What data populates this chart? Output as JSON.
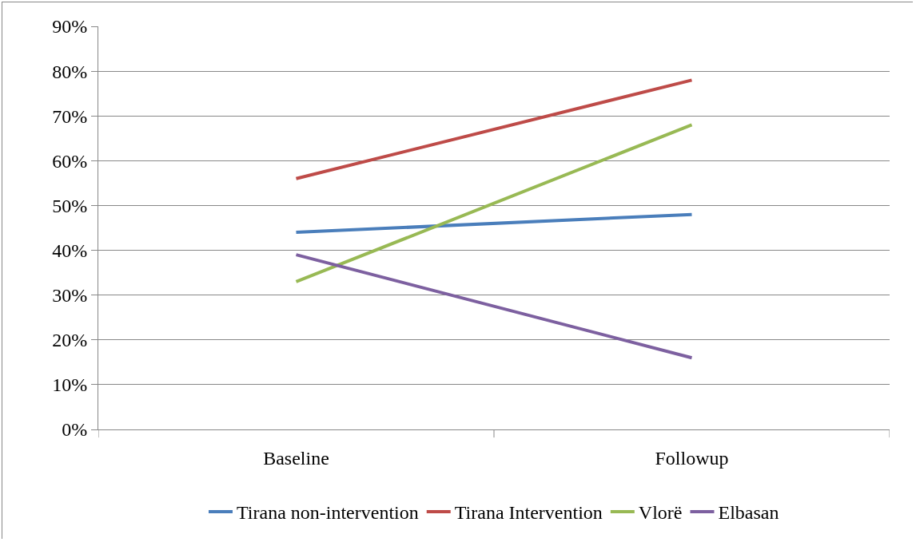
{
  "chart_data": {
    "type": "line",
    "categories": [
      "Baseline",
      "Followup"
    ],
    "series": [
      {
        "name": "Tirana non-intervention",
        "color": "#4a7ebb",
        "values": [
          44,
          48
        ]
      },
      {
        "name": "Tirana Intervention",
        "color": "#be4b48",
        "values": [
          56,
          78
        ]
      },
      {
        "name": "Vlorë",
        "color": "#98b954",
        "values": [
          33,
          68
        ]
      },
      {
        "name": "Elbasan",
        "color": "#7d60a0",
        "values": [
          39,
          16
        ]
      }
    ],
    "ylim": [
      0,
      90
    ],
    "yticks": [
      {
        "value": 0,
        "label": "0%"
      },
      {
        "value": 10,
        "label": "10%"
      },
      {
        "value": 20,
        "label": "20%"
      },
      {
        "value": 30,
        "label": "30%"
      },
      {
        "value": 40,
        "label": "40%"
      },
      {
        "value": 50,
        "label": "50%"
      },
      {
        "value": 60,
        "label": "60%"
      },
      {
        "value": 70,
        "label": "70%"
      },
      {
        "value": 80,
        "label": "80%"
      },
      {
        "value": 90,
        "label": "90%"
      }
    ],
    "grid": "y",
    "legend": "bottom",
    "marker": "none",
    "line_style": "solid"
  }
}
